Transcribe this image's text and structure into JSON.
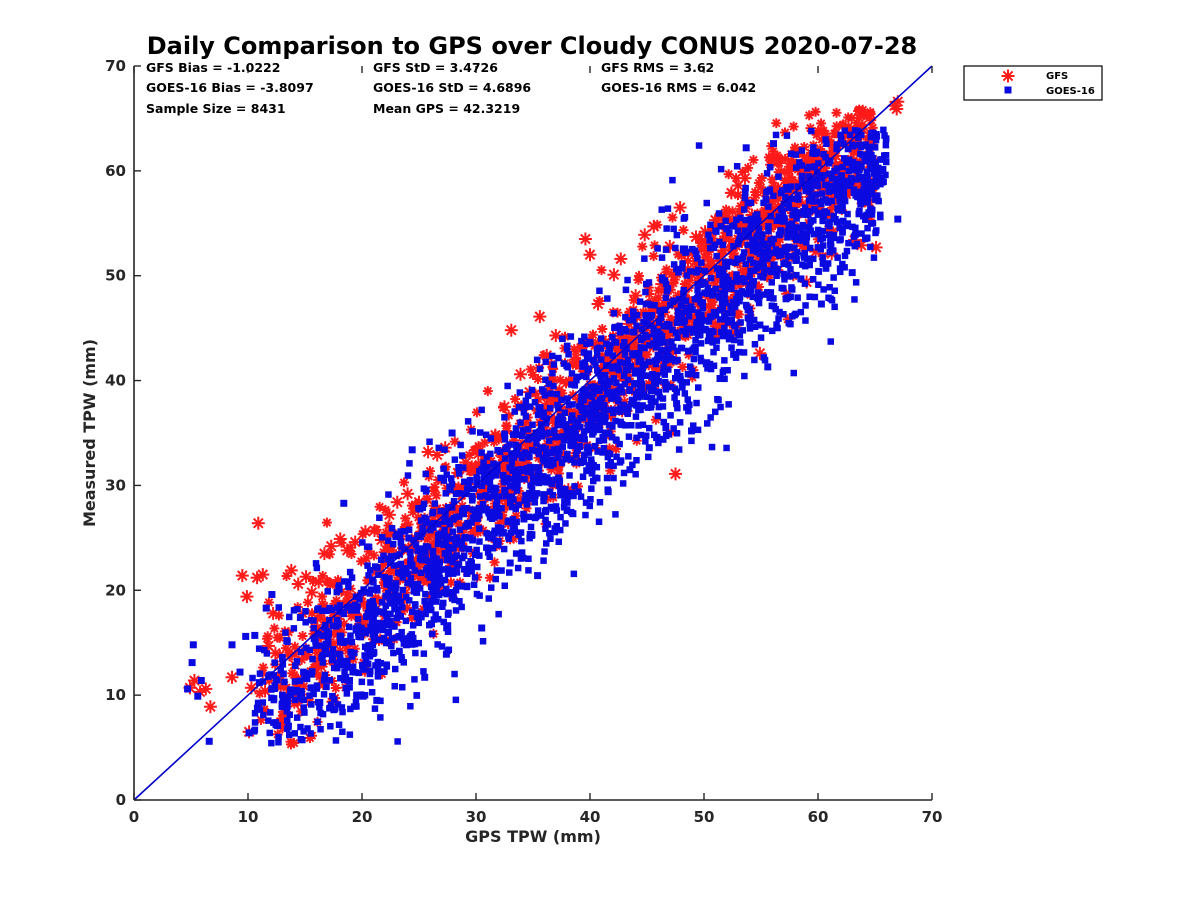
{
  "chart_data": {
    "type": "scatter",
    "title": "Daily Comparison to GPS over Cloudy CONUS 2020-07-28",
    "xlabel": "GPS TPW (mm)",
    "ylabel": "Measured TPW (mm)",
    "xlim": [
      0,
      70
    ],
    "ylim": [
      0,
      70
    ],
    "xticks": [
      "0",
      "10",
      "20",
      "30",
      "40",
      "50",
      "60",
      "70"
    ],
    "yticks": [
      "0",
      "10",
      "20",
      "30",
      "40",
      "50",
      "60",
      "70"
    ],
    "legend_position": "outside-top-right",
    "stats": {
      "gfs_bias": "GFS Bias = -1.0222",
      "gfs_std": "GFS StD = 3.4726",
      "gfs_rms": "GFS RMS = 3.62",
      "goes_bias": "GOES-16 Bias = -3.8097",
      "goes_std": "GOES-16 StD = 4.6896",
      "goes_rms": "GOES-16 RMS = 6.042",
      "sample_size": "Sample Size = 8431",
      "mean_gps": "Mean GPS = 42.3219"
    },
    "reference_line": {
      "from": [
        0,
        0
      ],
      "to": [
        70,
        70
      ],
      "color": "#0000cc"
    },
    "series": [
      {
        "name": "GFS",
        "marker": "asterisk",
        "color": "#ff1a1a",
        "points": [
          [
            4.9,
            10.7
          ],
          [
            5.3,
            11.4
          ],
          [
            5.8,
            10.3
          ],
          [
            6.3,
            10.6
          ],
          [
            6.7,
            8.9
          ],
          [
            8.6,
            11.7
          ],
          [
            9.5,
            21.4
          ],
          [
            9.9,
            19.4
          ],
          [
            10.1,
            6.5
          ],
          [
            10.3,
            10.7
          ],
          [
            10.8,
            21.2
          ],
          [
            10.9,
            26.4
          ],
          [
            11.3,
            21.5
          ],
          [
            11.5,
            10.4
          ],
          [
            11.8,
            14.7
          ],
          [
            12.2,
            17.8
          ],
          [
            12.4,
            14.0
          ],
          [
            12.9,
            7.4
          ],
          [
            13.2,
            8.4
          ],
          [
            13.8,
            21.9
          ],
          [
            14.1,
            12.9
          ],
          [
            14.4,
            20.6
          ],
          [
            15.1,
            21.3
          ],
          [
            15.6,
            19.8
          ],
          [
            16.2,
            20.8
          ],
          [
            16.7,
            23.5
          ],
          [
            17.3,
            24.2
          ],
          [
            18.1,
            24.9
          ],
          [
            18.7,
            23.8
          ],
          [
            19.4,
            24.6
          ],
          [
            20.3,
            25.6
          ],
          [
            21.1,
            25.7
          ],
          [
            21.7,
            24.8
          ],
          [
            22.4,
            27.2
          ],
          [
            23.1,
            28.4
          ],
          [
            24.0,
            29.2
          ],
          [
            25.0,
            28.4
          ],
          [
            25.8,
            33.2
          ],
          [
            26.6,
            32.9
          ],
          [
            27.3,
            33.6
          ],
          [
            28.4,
            31.2
          ],
          [
            29.1,
            32.2
          ],
          [
            30.2,
            33.0
          ],
          [
            31.0,
            32.5
          ],
          [
            31.7,
            34.8
          ],
          [
            32.5,
            37.5
          ],
          [
            33.1,
            44.8
          ],
          [
            33.9,
            40.6
          ],
          [
            34.7,
            38.9
          ],
          [
            35.6,
            46.1
          ],
          [
            36.2,
            42.4
          ],
          [
            37.0,
            44.3
          ],
          [
            38.1,
            29.6
          ],
          [
            38.8,
            41.7
          ],
          [
            39.6,
            53.5
          ],
          [
            40.0,
            52.0
          ],
          [
            40.7,
            47.3
          ],
          [
            41.3,
            43.6
          ],
          [
            42.1,
            50.1
          ],
          [
            42.7,
            51.6
          ],
          [
            43.4,
            45.4
          ],
          [
            44.0,
            48.1
          ],
          [
            44.8,
            53.9
          ],
          [
            45.6,
            54.7
          ],
          [
            46.3,
            49.2
          ],
          [
            47.0,
            52.8
          ],
          [
            47.5,
            31.1
          ],
          [
            47.9,
            56.5
          ],
          [
            48.6,
            51.4
          ],
          [
            49.3,
            53.7
          ],
          [
            50.1,
            54.2
          ],
          [
            51.0,
            55.3
          ],
          [
            51.7,
            52.4
          ],
          [
            52.4,
            57.9
          ],
          [
            53.0,
            58.6
          ],
          [
            53.6,
            59.3
          ],
          [
            54.2,
            55.8
          ],
          [
            54.9,
            42.6
          ],
          [
            55.7,
            53.2
          ],
          [
            56.4,
            55.6
          ],
          [
            57.3,
            54.1
          ],
          [
            58.1,
            53.7
          ],
          [
            59.0,
            49.4
          ],
          [
            59.8,
            52.3
          ],
          [
            60.6,
            61.1
          ],
          [
            61.2,
            52.1
          ],
          [
            61.9,
            60.3
          ],
          [
            62.4,
            59.9
          ],
          [
            63.2,
            53.4
          ],
          [
            63.8,
            52.9
          ],
          [
            64.5,
            57.0
          ],
          [
            65.1,
            52.7
          ],
          [
            66.9,
            65.9
          ],
          [
            67.0,
            66.6
          ],
          [
            66.7,
            66.2
          ]
        ]
      },
      {
        "name": "GOES-16",
        "marker": "square",
        "color": "#0a0ae0",
        "points": [
          [
            4.7,
            10.6
          ],
          [
            5.1,
            13.1
          ],
          [
            5.2,
            14.8
          ],
          [
            5.6,
            9.9
          ],
          [
            5.9,
            11.4
          ],
          [
            6.6,
            5.6
          ],
          [
            8.6,
            14.8
          ],
          [
            9.3,
            12.2
          ],
          [
            9.8,
            15.6
          ],
          [
            10.1,
            6.4
          ],
          [
            10.6,
            15.7
          ],
          [
            11.0,
            11.2
          ],
          [
            11.6,
            18.3
          ],
          [
            12.1,
            19.6
          ],
          [
            12.6,
            7.1
          ],
          [
            13.0,
            8.9
          ],
          [
            13.4,
            15.2
          ],
          [
            14.1,
            10.3
          ],
          [
            14.6,
            17.4
          ],
          [
            15.0,
            12.1
          ],
          [
            15.6,
            10.7
          ],
          [
            16.3,
            9.3
          ],
          [
            16.8,
            14.6
          ],
          [
            17.4,
            13.5
          ],
          [
            18.0,
            20.1
          ],
          [
            18.4,
            28.3
          ],
          [
            18.9,
            11.4
          ],
          [
            19.5,
            16.2
          ],
          [
            20.1,
            9.9
          ],
          [
            20.7,
            12.3
          ],
          [
            21.3,
            9.5
          ],
          [
            21.9,
            17.9
          ],
          [
            22.5,
            22.6
          ],
          [
            23.2,
            19.4
          ],
          [
            23.9,
            14.8
          ],
          [
            24.4,
            33.4
          ],
          [
            24.8,
            19.8
          ],
          [
            25.5,
            11.7
          ],
          [
            26.1,
            16.8
          ],
          [
            26.8,
            22.7
          ],
          [
            27.4,
            13.9
          ],
          [
            27.9,
            35.0
          ],
          [
            28.6,
            20.4
          ],
          [
            29.2,
            21.6
          ],
          [
            29.7,
            24.8
          ],
          [
            30.5,
            16.4
          ],
          [
            31.1,
            25.3
          ],
          [
            31.8,
            28.1
          ],
          [
            32.4,
            25.5
          ],
          [
            33.0,
            22.6
          ],
          [
            33.7,
            31.2
          ],
          [
            34.2,
            26.8
          ],
          [
            34.9,
            25.3
          ],
          [
            35.4,
            21.4
          ],
          [
            36.1,
            27.5
          ],
          [
            36.7,
            32.4
          ],
          [
            37.3,
            30.1
          ],
          [
            37.9,
            35.8
          ],
          [
            38.5,
            27.3
          ],
          [
            39.1,
            33.7
          ],
          [
            39.7,
            38.6
          ],
          [
            40.3,
            31.9
          ],
          [
            41.0,
            36.4
          ],
          [
            41.6,
            29.4
          ],
          [
            42.1,
            41.3
          ],
          [
            42.8,
            35.8
          ],
          [
            43.5,
            31.5
          ],
          [
            44.0,
            40.7
          ],
          [
            44.6,
            37.6
          ],
          [
            45.2,
            33.6
          ],
          [
            45.8,
            43.5
          ],
          [
            46.4,
            34.4
          ],
          [
            47.0,
            42.1
          ],
          [
            47.6,
            37.8
          ],
          [
            48.3,
            45.7
          ],
          [
            48.9,
            35.2
          ],
          [
            49.5,
            44.4
          ],
          [
            50.2,
            41.6
          ],
          [
            50.8,
            48.3
          ],
          [
            51.4,
            40.2
          ],
          [
            52.0,
            50.9
          ],
          [
            52.6,
            42.5
          ],
          [
            53.1,
            47.6
          ],
          [
            53.7,
            62.2
          ],
          [
            54.3,
            49.1
          ],
          [
            54.9,
            45.3
          ],
          [
            55.6,
            41.3
          ],
          [
            56.1,
            62.6
          ],
          [
            56.7,
            52.3
          ],
          [
            57.2,
            47.8
          ],
          [
            57.8,
            55.8
          ],
          [
            58.5,
            49.7
          ],
          [
            59.1,
            51.6
          ],
          [
            59.7,
            56.3
          ],
          [
            60.3,
            47.3
          ],
          [
            61.0,
            53.9
          ],
          [
            61.6,
            58.6
          ],
          [
            62.2,
            55.2
          ],
          [
            63.0,
            50.3
          ],
          [
            63.6,
            55.9
          ],
          [
            64.3,
            53.6
          ],
          [
            67.0,
            55.4
          ]
        ]
      }
    ]
  }
}
